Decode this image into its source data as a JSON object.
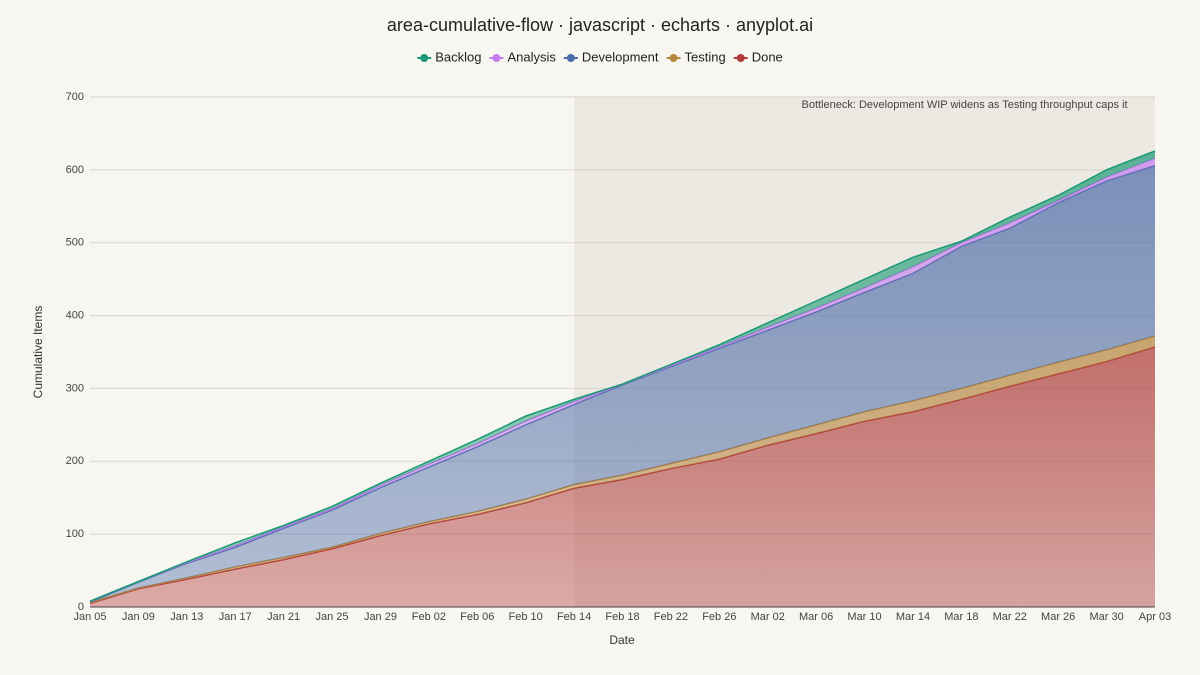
{
  "chart_data": {
    "type": "stacked_area",
    "title": "area-cumulative-flow · javascript · echarts · anyplot.ai",
    "x_label": "Date",
    "y_label": "Cumulative Items",
    "categories": [
      "Jan 05",
      "Jan 09",
      "Jan 13",
      "Jan 17",
      "Jan 21",
      "Jan 25",
      "Jan 29",
      "Feb 02",
      "Feb 06",
      "Feb 10",
      "Feb 14",
      "Feb 18",
      "Feb 22",
      "Feb 26",
      "Mar 02",
      "Mar 06",
      "Mar 10",
      "Mar 14",
      "Mar 18",
      "Mar 22",
      "Mar 26",
      "Mar 30",
      "Apr 03"
    ],
    "series": [
      {
        "name": "Backlog",
        "color": "#1a9a74",
        "values": [
          0,
          0,
          1,
          4,
          2,
          3,
          3,
          4,
          6,
          7,
          3,
          0,
          1,
          3,
          6,
          10,
          12,
          13,
          2,
          8,
          7,
          10,
          10
        ]
      },
      {
        "name": "Analysis",
        "color": "#c47ef0",
        "values": [
          1,
          1,
          1,
          2,
          2,
          2,
          3,
          4,
          4,
          5,
          4,
          1,
          2,
          2,
          4,
          5,
          6,
          9,
          5,
          7,
          3,
          5,
          10
        ]
      },
      {
        "name": "Development",
        "color": "#4a6aa8",
        "values": [
          1,
          8,
          20,
          27,
          40,
          51,
          63,
          75,
          89,
          102,
          110,
          124,
          133,
          142,
          148,
          155,
          164,
          175,
          195,
          202,
          219,
          232,
          234
        ]
      },
      {
        "name": "Testing",
        "color": "#b8863d",
        "values": [
          1,
          1,
          2,
          3,
          3,
          2,
          3,
          3,
          4,
          5,
          5,
          6,
          7,
          10,
          10,
          12,
          13,
          15,
          15,
          15,
          16,
          16,
          15
        ]
      },
      {
        "name": "Done",
        "color": "#b03a3a",
        "values": [
          5,
          25,
          38,
          52,
          65,
          80,
          98,
          114,
          127,
          143,
          163,
          175,
          190,
          203,
          222,
          238,
          255,
          268,
          285,
          303,
          320,
          337,
          357
        ]
      }
    ],
    "ylim": [
      0,
      700
    ],
    "yticks": [
      0,
      100,
      200,
      300,
      400,
      500,
      600,
      700
    ],
    "grid": true,
    "legend": "top",
    "annotation": {
      "text": "Bottleneck: Development WIP widens as Testing throughput caps it",
      "x_start": "Feb 14"
    }
  }
}
